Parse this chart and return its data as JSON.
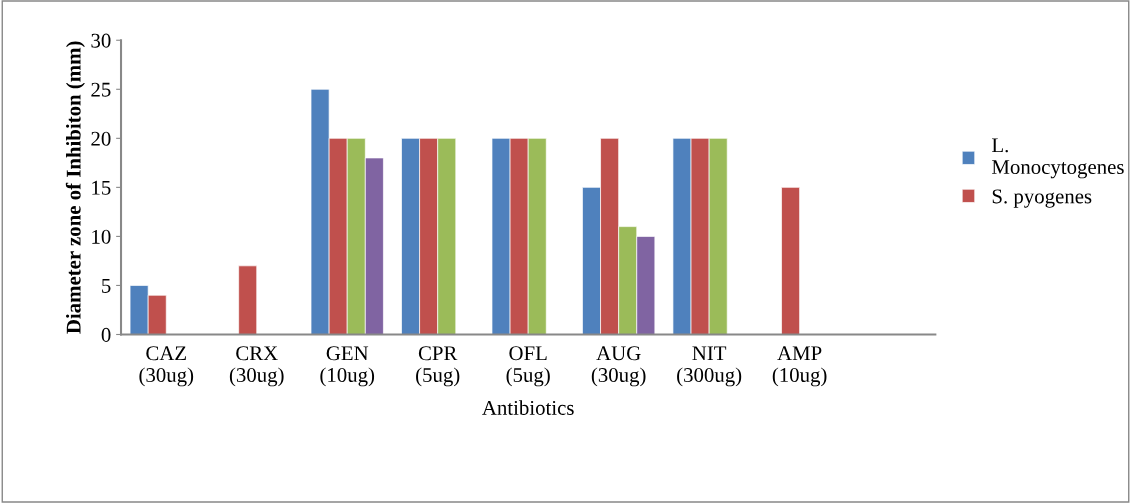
{
  "chart_data": {
    "type": "bar",
    "ylabel": "Diameter zone of Inhibiton (mm)",
    "xlabel": "Antibiotics",
    "categories": [
      "CAZ\n(30ug)",
      "CRX\n(30ug)",
      "GEN\n(10ug)",
      "CPR\n(5ug)",
      "OFL\n(5ug)",
      "AUG\n(30ug)",
      "NIT\n(300ug)",
      "AMP\n(10ug)",
      null
    ],
    "series": [
      {
        "name": "L.\nMonocytogenes",
        "color": "#4f81bd",
        "values": [
          5,
          null,
          25,
          20,
          20,
          15,
          20,
          null,
          null
        ]
      },
      {
        "name": "S. pyogenes",
        "color": "#c0504d",
        "values": [
          4,
          7,
          20,
          20,
          20,
          20,
          20,
          15,
          null
        ]
      },
      {
        "color": "#9bbb59",
        "values": [
          null,
          null,
          20,
          20,
          20,
          11,
          20,
          null,
          null
        ]
      },
      {
        "color": "#8064a2",
        "values": [
          null,
          null,
          18,
          null,
          null,
          10,
          null,
          null,
          null
        ]
      }
    ],
    "ylim": [
      0,
      30
    ],
    "yticks": [
      0,
      5,
      10,
      15,
      20,
      25,
      30
    ],
    "grid": false,
    "legend": "right"
  }
}
